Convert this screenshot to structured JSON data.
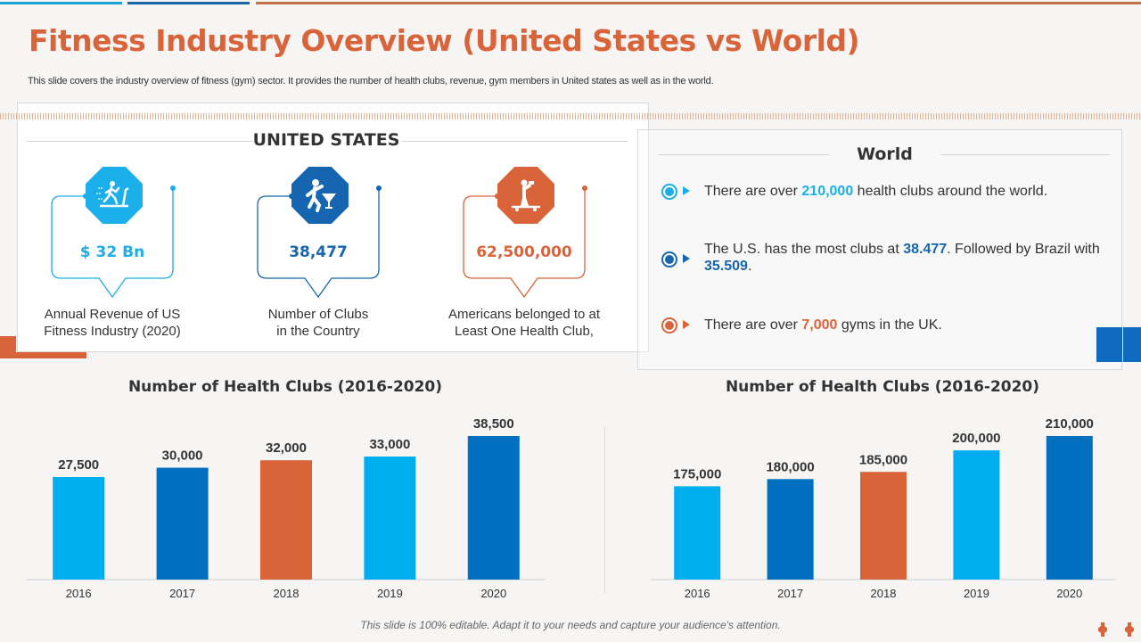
{
  "title": "Fitness Industry Overview (United States vs World)",
  "subtitle": "This slide covers the industry overview of fitness (gym) sector. It provides the number of health clubs, revenue, gym members in United states as well as in the world.",
  "us": {
    "heading": "UNITED STATES",
    "cards": [
      {
        "icon": "treadmill-runner-icon",
        "value": "$ 32 Bn",
        "label_line1": "Annual Revenue of US",
        "label_line2": "Fitness Industry  (2020)",
        "color": "#1aaeea"
      },
      {
        "icon": "dancer-cocktail-icon",
        "value": "38,477",
        "label_line1": "Number of Clubs",
        "label_line2": "in the Country",
        "color": "#1565b0"
      },
      {
        "icon": "person-skateboard-dumbbell-icon",
        "value": "62,500,000",
        "label_line1": "Americans belonged to at",
        "label_line2": "Least One Health Club,",
        "color": "#d9643a"
      }
    ]
  },
  "world": {
    "heading": "World",
    "bullets": [
      {
        "pre": "There are over ",
        "highlight": "210,000",
        "post": " health clubs around the world.",
        "color": "#1aaeea"
      },
      {
        "pre": "The U.S. has the most clubs at ",
        "highlight": "38.477",
        "mid": ". Followed by Brazil with ",
        "highlight2": "35.509",
        "post": ".",
        "color": "#1565b0"
      },
      {
        "pre": "There are over ",
        "highlight": "7,000",
        "post": " gyms in the UK.",
        "color": "#d9643a"
      }
    ]
  },
  "footer": "This slide is 100% editable. Adapt it to your needs and capture your audience's attention.",
  "chart_data": [
    {
      "type": "bar",
      "title": "Number of Health Clubs (2016-2020)",
      "categories": [
        "2016",
        "2017",
        "2018",
        "2019",
        "2020"
      ],
      "values": [
        27500,
        30000,
        32000,
        33000,
        38500
      ],
      "labels": [
        "27,500",
        "30,000",
        "32,000",
        "33,000",
        "38,500"
      ],
      "colors": [
        "#00adef",
        "#0070c0",
        "#d9643a",
        "#00adef",
        "#0070c0"
      ],
      "xlabel": "",
      "ylabel": "",
      "ylim": [
        0,
        38500
      ],
      "grid": false
    },
    {
      "type": "bar",
      "title": "Number of Health Clubs (2016-2020)",
      "categories": [
        "2016",
        "2017",
        "2018",
        "2019",
        "2020"
      ],
      "values": [
        175000,
        180000,
        185000,
        200000,
        210000
      ],
      "labels": [
        "175,000",
        "180,000",
        "185,000",
        "200,000",
        "210,000"
      ],
      "colors": [
        "#00adef",
        "#0070c0",
        "#d9643a",
        "#00adef",
        "#0070c0"
      ],
      "xlabel": "",
      "ylabel": "",
      "ylim": [
        110000,
        210000
      ],
      "grid": false
    }
  ]
}
